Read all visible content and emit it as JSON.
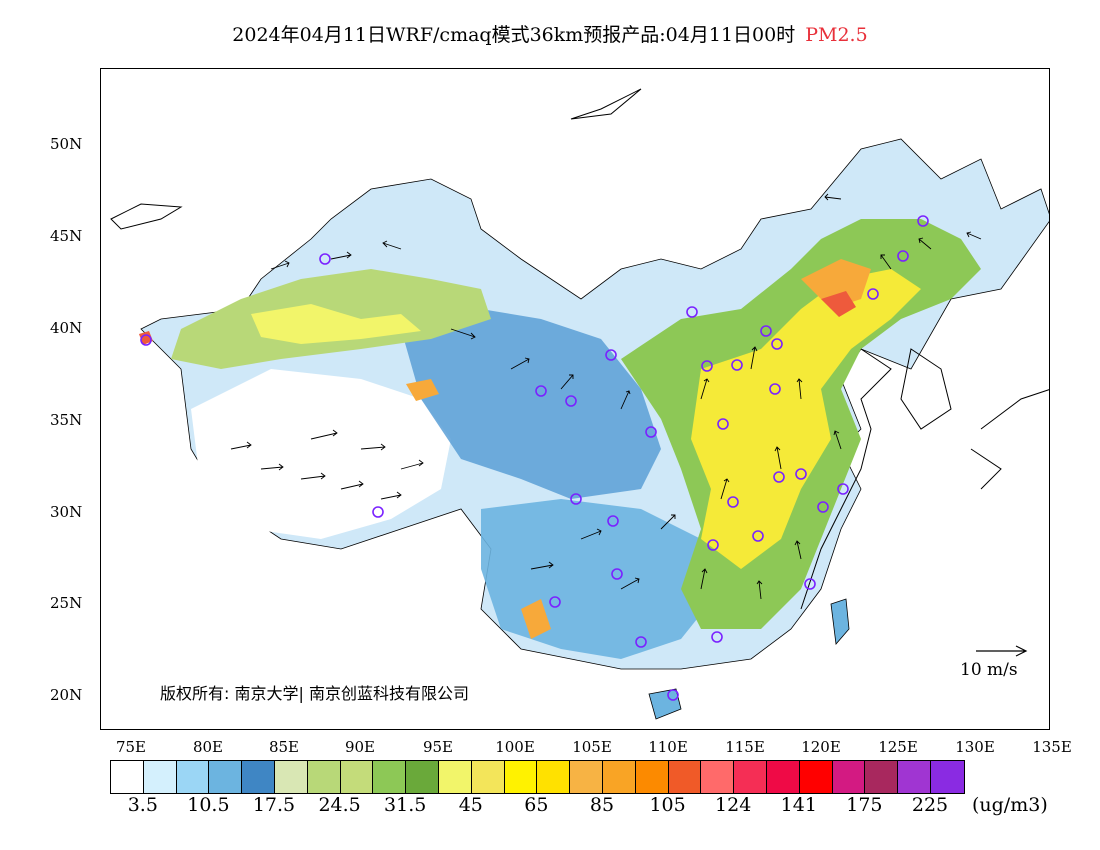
{
  "title": {
    "main": "2024年04月11日WRF/cmaq模式36km预报产品:04月11日00时",
    "pollutant": "PM2.5"
  },
  "map": {
    "lat_labels": [
      "50N",
      "45N",
      "40N",
      "35N",
      "30N",
      "25N",
      "20N"
    ],
    "lon_labels": [
      "75E",
      "80E",
      "85E",
      "90E",
      "95E",
      "100E",
      "105E",
      "110E",
      "115E",
      "120E",
      "125E",
      "130E",
      "135E"
    ],
    "copyright": "版权所有: 南京大学| 南京创蓝科技有限公司",
    "wind_scale_label": "10 m/s",
    "colors": {
      "very_low": "#d8efff",
      "low": "#74b4e0",
      "mid_low": "#3f86c4",
      "light_green": "#c4dc7a",
      "green": "#7fbd45",
      "yellow": "#f5ea38",
      "orange": "#f7a93a",
      "red": "#ee5a3c",
      "site_marker": "#7a22ff"
    }
  },
  "colorbar": {
    "colors": [
      "#ffffff",
      "#d4f0fd",
      "#9bd6f5",
      "#6cb4e0",
      "#3f86c4",
      "#d9e7b4",
      "#b8d878",
      "#c4dc7a",
      "#8dc856",
      "#6aa93a",
      "#f2f56a",
      "#f3e55a",
      "#fff200",
      "#ffe100",
      "#f7b344",
      "#f9a425",
      "#fc8a00",
      "#f05a28",
      "#ff6a6a",
      "#f52e55",
      "#ef0a46",
      "#ff0000",
      "#d31a82",
      "#a8285e",
      "#a035d2",
      "#8a2be2"
    ],
    "labels": [
      "3.5",
      "10.5",
      "17.5",
      "24.5",
      "31.5",
      "45",
      "65",
      "85",
      "105",
      "124",
      "141",
      "175",
      "225"
    ],
    "unit": "(ug/m3)"
  }
}
